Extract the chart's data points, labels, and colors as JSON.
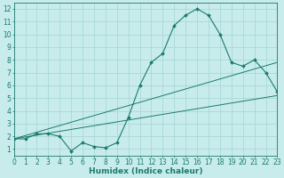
{
  "main_x": [
    0,
    1,
    2,
    3,
    4,
    5,
    6,
    7,
    8,
    9,
    10,
    11,
    12,
    13,
    14,
    15,
    16,
    17,
    18,
    19,
    20,
    21,
    22,
    23
  ],
  "main_y": [
    1.8,
    1.8,
    2.2,
    2.2,
    2.0,
    0.85,
    1.5,
    1.2,
    1.1,
    1.5,
    3.5,
    6.0,
    7.8,
    8.5,
    10.7,
    11.5,
    12.0,
    11.5,
    10.0,
    7.8,
    7.5,
    8.0,
    7.0,
    5.5
  ],
  "line2_x": [
    0,
    23
  ],
  "line2_y": [
    1.8,
    7.8
  ],
  "line3_x": [
    0,
    23
  ],
  "line3_y": [
    1.8,
    5.2
  ],
  "line_color": "#1a7a6e",
  "bg_color": "#c8ecec",
  "grid_color": "#a8d8d8",
  "xlabel": "Humidex (Indice chaleur)",
  "xlim": [
    0,
    23
  ],
  "ylim": [
    0.5,
    12.5
  ],
  "xticks": [
    0,
    1,
    2,
    3,
    4,
    5,
    6,
    7,
    8,
    9,
    10,
    11,
    12,
    13,
    14,
    15,
    16,
    17,
    18,
    19,
    20,
    21,
    22,
    23
  ],
  "yticks": [
    1,
    2,
    3,
    4,
    5,
    6,
    7,
    8,
    9,
    10,
    11,
    12
  ],
  "label_fontsize": 6.5,
  "tick_fontsize": 5.5
}
